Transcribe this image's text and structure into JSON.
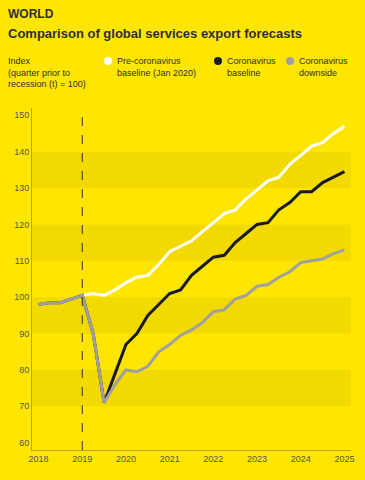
{
  "chart_data": {
    "type": "line",
    "header": "WORLD",
    "title": "Comparison of global services export forecasts",
    "ylabel": [
      "Index",
      "(quarter prior to",
      "recession (t) = 100)"
    ],
    "x": [
      2018,
      2018.25,
      2018.5,
      2018.75,
      2019,
      2019.25,
      2019.5,
      2019.75,
      2020,
      2020.25,
      2020.5,
      2020.75,
      2021,
      2021.25,
      2021.5,
      2021.75,
      2022,
      2022.25,
      2022.5,
      2022.75,
      2023,
      2023.25,
      2023.5,
      2023.75,
      2024,
      2024.25,
      2024.5,
      2024.75,
      2025
    ],
    "xlim": [
      2017.85,
      2025.15
    ],
    "xticks": [
      2018,
      2019,
      2020,
      2021,
      2022,
      2023,
      2024,
      2025
    ],
    "ylim": [
      58,
      152
    ],
    "yticks": [
      60,
      70,
      80,
      90,
      100,
      110,
      120,
      130,
      140,
      150
    ],
    "grid": true,
    "reference_lines": [
      {
        "x": 2019,
        "line_style": "dashed"
      }
    ],
    "series": [
      {
        "name": "Pre-coronavirus baseline (Jan 2020)",
        "color": "#FFFFFF",
        "values": [
          98,
          98.5,
          98.5,
          99.5,
          100.5,
          101,
          100.5,
          102,
          104,
          105.5,
          106,
          109,
          112.5,
          114,
          115.5,
          118,
          120.5,
          123,
          124,
          127,
          129.5,
          132,
          133,
          136.5,
          139,
          141.5,
          142.5,
          145,
          147
        ]
      },
      {
        "name": "Coronavirus baseline",
        "color": "#1A1A24",
        "values": [
          98,
          98.5,
          98.5,
          99.5,
          100.5,
          90,
          71,
          79,
          87,
          90,
          95,
          98,
          101,
          102,
          106,
          108.5,
          111,
          111.5,
          115,
          117.5,
          120,
          120.5,
          124,
          126,
          129,
          129,
          131.5,
          133,
          134.5
        ]
      },
      {
        "name": "Coronavirus downside",
        "color": "#A0A0A0",
        "values": [
          98,
          98.5,
          98.5,
          99.5,
          100.5,
          90,
          71,
          76,
          80,
          79.5,
          81,
          85,
          87,
          89.5,
          91,
          93,
          96,
          96.5,
          99.5,
          100.5,
          103,
          103.5,
          105.5,
          107,
          109.5,
          110,
          110.5,
          112,
          113
        ]
      }
    ]
  }
}
